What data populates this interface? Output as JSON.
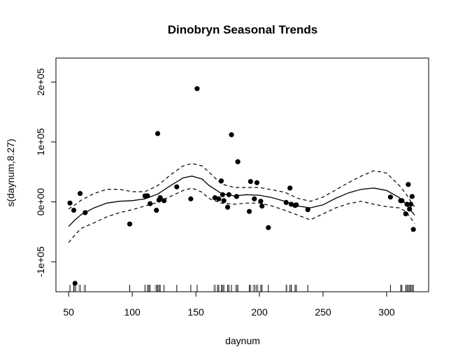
{
  "chart_data": {
    "type": "scatter",
    "title": "Dinobryn Seasonal Trends",
    "xlabel": "daynum",
    "ylabel": "s(daynum,8.27)",
    "xlim": [
      40,
      333
    ],
    "ylim": [
      -150000,
      240000
    ],
    "x_ticks": [
      50,
      100,
      150,
      200,
      250,
      300
    ],
    "x_tick_labels": [
      "50",
      "100",
      "150",
      "200",
      "250",
      "300"
    ],
    "y_ticks": [
      -100000,
      0,
      100000,
      200000
    ],
    "y_tick_labels": [
      "-1e+05",
      "0e+00",
      "1e+05",
      "2e+05"
    ],
    "grid": false,
    "points": {
      "x": [
        51,
        54,
        59,
        63,
        98,
        110,
        112,
        114,
        119,
        120,
        121,
        122,
        125,
        135,
        146,
        151,
        165,
        168,
        170,
        171,
        172,
        175,
        176,
        178,
        182,
        183,
        192,
        193,
        196,
        198,
        201,
        202,
        207,
        221,
        224,
        225,
        228,
        229,
        238,
        303,
        311,
        312,
        315,
        316,
        317,
        318,
        319,
        320,
        321
      ],
      "y": [
        -2000,
        -14000,
        14000,
        -18000,
        -37000,
        10000,
        10000,
        -3000,
        -14000,
        114000,
        3000,
        7000,
        2000,
        25000,
        5000,
        189000,
        7000,
        5000,
        35000,
        12000,
        2000,
        -9000,
        12000,
        112000,
        9000,
        67000,
        -16000,
        34000,
        5000,
        32000,
        1000,
        -7000,
        -43000,
        -1000,
        23000,
        -4000,
        -6000,
        -5000,
        -13000,
        8000,
        2000,
        2000,
        -20000,
        -4000,
        29000,
        -12000,
        -4000,
        9000,
        -46000
      ]
    },
    "fit_curve": {
      "x": [
        50,
        55,
        60,
        70,
        80,
        90,
        100,
        110,
        120,
        130,
        140,
        147,
        155,
        160,
        170,
        180,
        190,
        200,
        210,
        220,
        230,
        240,
        250,
        260,
        270,
        280,
        290,
        300,
        310,
        315,
        320,
        322
      ],
      "y": [
        -41000,
        -30000,
        -21000,
        -10000,
        -2000,
        1000,
        2000,
        5000,
        13000,
        27000,
        40000,
        43000,
        38000,
        28000,
        14000,
        10000,
        12000,
        11000,
        7000,
        1000,
        -7000,
        -10000,
        -5000,
        6000,
        15000,
        21000,
        23000,
        19000,
        7000,
        -3000,
        -17000,
        -22000
      ]
    },
    "upper_band": {
      "x": [
        50,
        55,
        60,
        70,
        80,
        90,
        100,
        110,
        120,
        130,
        140,
        147,
        155,
        160,
        170,
        180,
        190,
        200,
        210,
        220,
        230,
        240,
        250,
        260,
        270,
        280,
        290,
        300,
        310,
        315,
        320,
        322
      ],
      "y": [
        -12000,
        -5000,
        3000,
        14000,
        21000,
        21000,
        17000,
        17000,
        27000,
        45000,
        60000,
        64000,
        60000,
        50000,
        30000,
        24000,
        24000,
        24000,
        20000,
        16000,
        6000,
        1000,
        8000,
        20000,
        32000,
        43000,
        52000,
        48000,
        27000,
        14000,
        -3000,
        -8000
      ]
    },
    "lower_band": {
      "x": [
        50,
        55,
        60,
        70,
        80,
        90,
        100,
        110,
        120,
        130,
        140,
        147,
        155,
        160,
        170,
        180,
        190,
        200,
        210,
        220,
        230,
        240,
        250,
        260,
        270,
        280,
        290,
        300,
        310,
        315,
        320,
        322
      ],
      "y": [
        -68000,
        -55000,
        -44000,
        -35000,
        -25000,
        -18000,
        -13000,
        -7000,
        -1000,
        9000,
        19000,
        23000,
        16000,
        6000,
        -2000,
        -4000,
        -2000,
        -2000,
        -7000,
        -14000,
        -22000,
        -30000,
        -20000,
        -10000,
        -3000,
        1000,
        -4000,
        -8000,
        -10000,
        -16000,
        -30000,
        -36000
      ]
    },
    "rug": [
      51,
      54,
      55,
      59,
      63,
      98,
      110,
      112,
      113,
      114,
      119,
      120,
      121,
      122,
      125,
      135,
      146,
      151,
      165,
      167,
      168,
      170,
      171,
      172,
      175,
      176,
      178,
      182,
      183,
      192,
      193,
      196,
      198,
      201,
      202,
      207,
      221,
      224,
      225,
      228,
      229,
      238,
      303,
      311,
      312,
      315,
      316,
      317,
      318,
      319,
      320,
      321
    ],
    "rug_grey": [
      56,
      58,
      62,
      118,
      164,
      181,
      195,
      197,
      199,
      222
    ]
  }
}
